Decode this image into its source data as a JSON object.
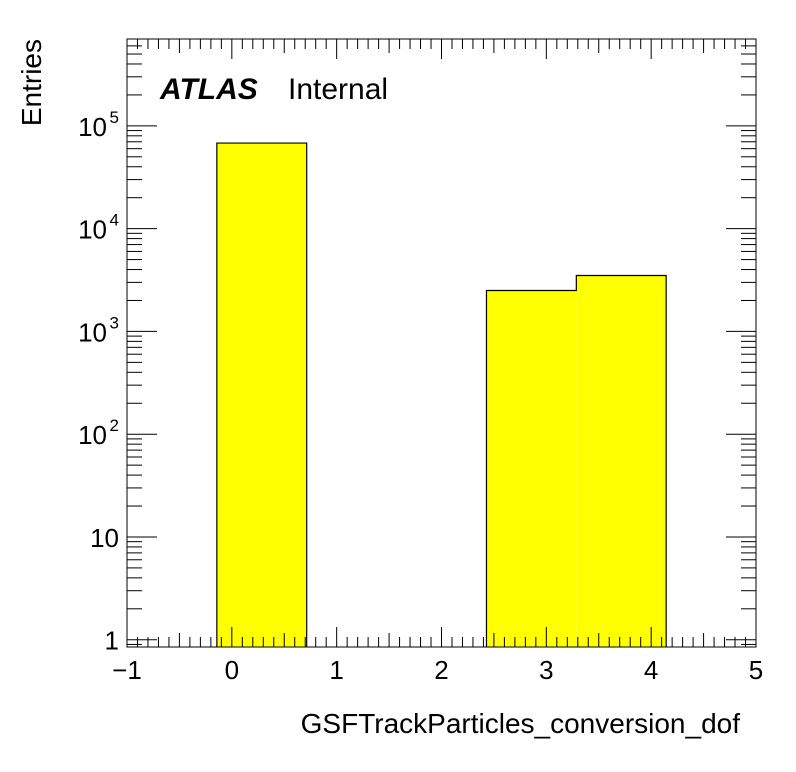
{
  "chart_data": {
    "type": "bar",
    "title": "",
    "xlabel": "GSFTrackParticles_conversion_dof",
    "ylabel": "Entries",
    "xlim": [
      -1,
      5
    ],
    "ylim": [
      0.85,
      700000
    ],
    "yscale": "log",
    "grid": false,
    "fill_color": "#ffff00",
    "edge_color": "#000000",
    "label": {
      "experiment": "ATLAS",
      "status": "Internal"
    },
    "bins": [
      {
        "x_low": -0.143,
        "x_high": 0.714,
        "value": 68000
      },
      {
        "x_low": 0.714,
        "x_high": 1.571,
        "value": 0
      },
      {
        "x_low": 1.571,
        "x_high": 2.429,
        "value": 0
      },
      {
        "x_low": 2.429,
        "x_high": 3.286,
        "value": 2500
      },
      {
        "x_low": 3.286,
        "x_high": 4.143,
        "value": 3500
      }
    ],
    "x_ticks": [
      {
        "value": -1,
        "label": "−1"
      },
      {
        "value": 0,
        "label": "0"
      },
      {
        "value": 1,
        "label": "1"
      },
      {
        "value": 2,
        "label": "2"
      },
      {
        "value": 3,
        "label": "3"
      },
      {
        "value": 4,
        "label": "4"
      },
      {
        "value": 5,
        "label": "5"
      }
    ],
    "y_ticks": [
      {
        "value": 1,
        "base": "1",
        "exp": ""
      },
      {
        "value": 10,
        "base": "10",
        "exp": ""
      },
      {
        "value": 100,
        "base": "10",
        "exp": "2"
      },
      {
        "value": 1000,
        "base": "10",
        "exp": "3"
      },
      {
        "value": 10000,
        "base": "10",
        "exp": "4"
      },
      {
        "value": 100000,
        "base": "10",
        "exp": "5"
      }
    ]
  }
}
